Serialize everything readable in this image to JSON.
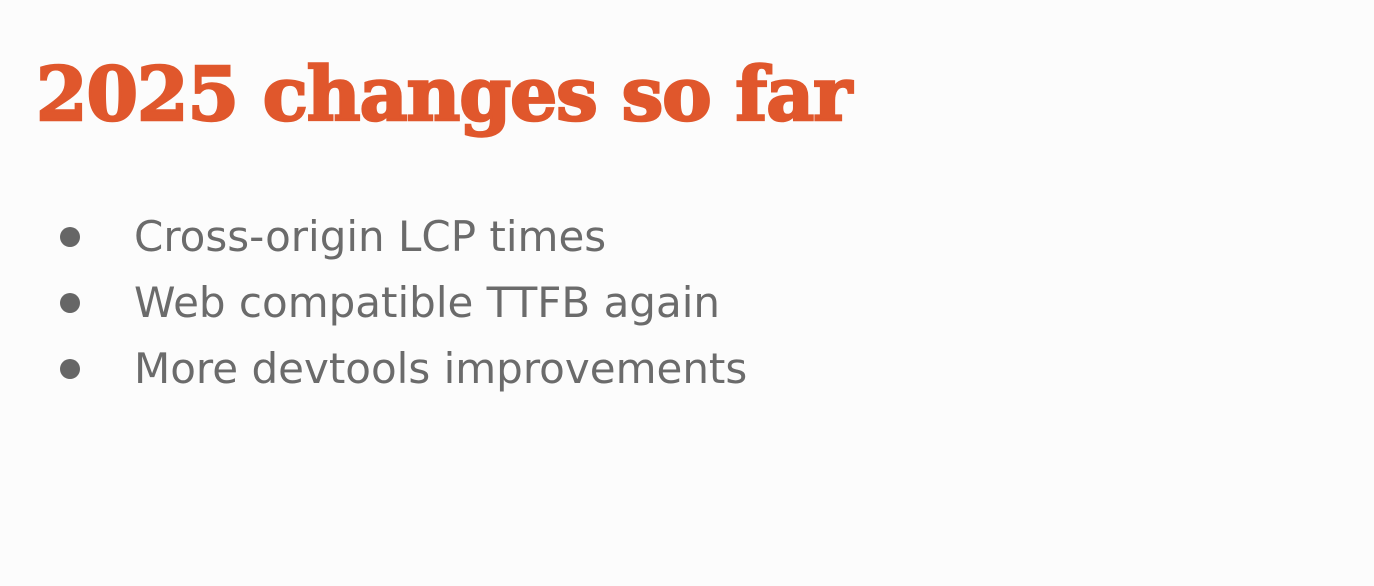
{
  "slide": {
    "title": "2025 changes so far",
    "bullets": [
      {
        "text": "Cross-origin LCP times"
      },
      {
        "text": "Web compatible TTFB again"
      },
      {
        "text": "More devtools improvements"
      }
    ]
  },
  "colors": {
    "title": "#e0572c",
    "text": "#6b6b6b",
    "bullet": "#666666",
    "background": "#fcfcfc"
  }
}
